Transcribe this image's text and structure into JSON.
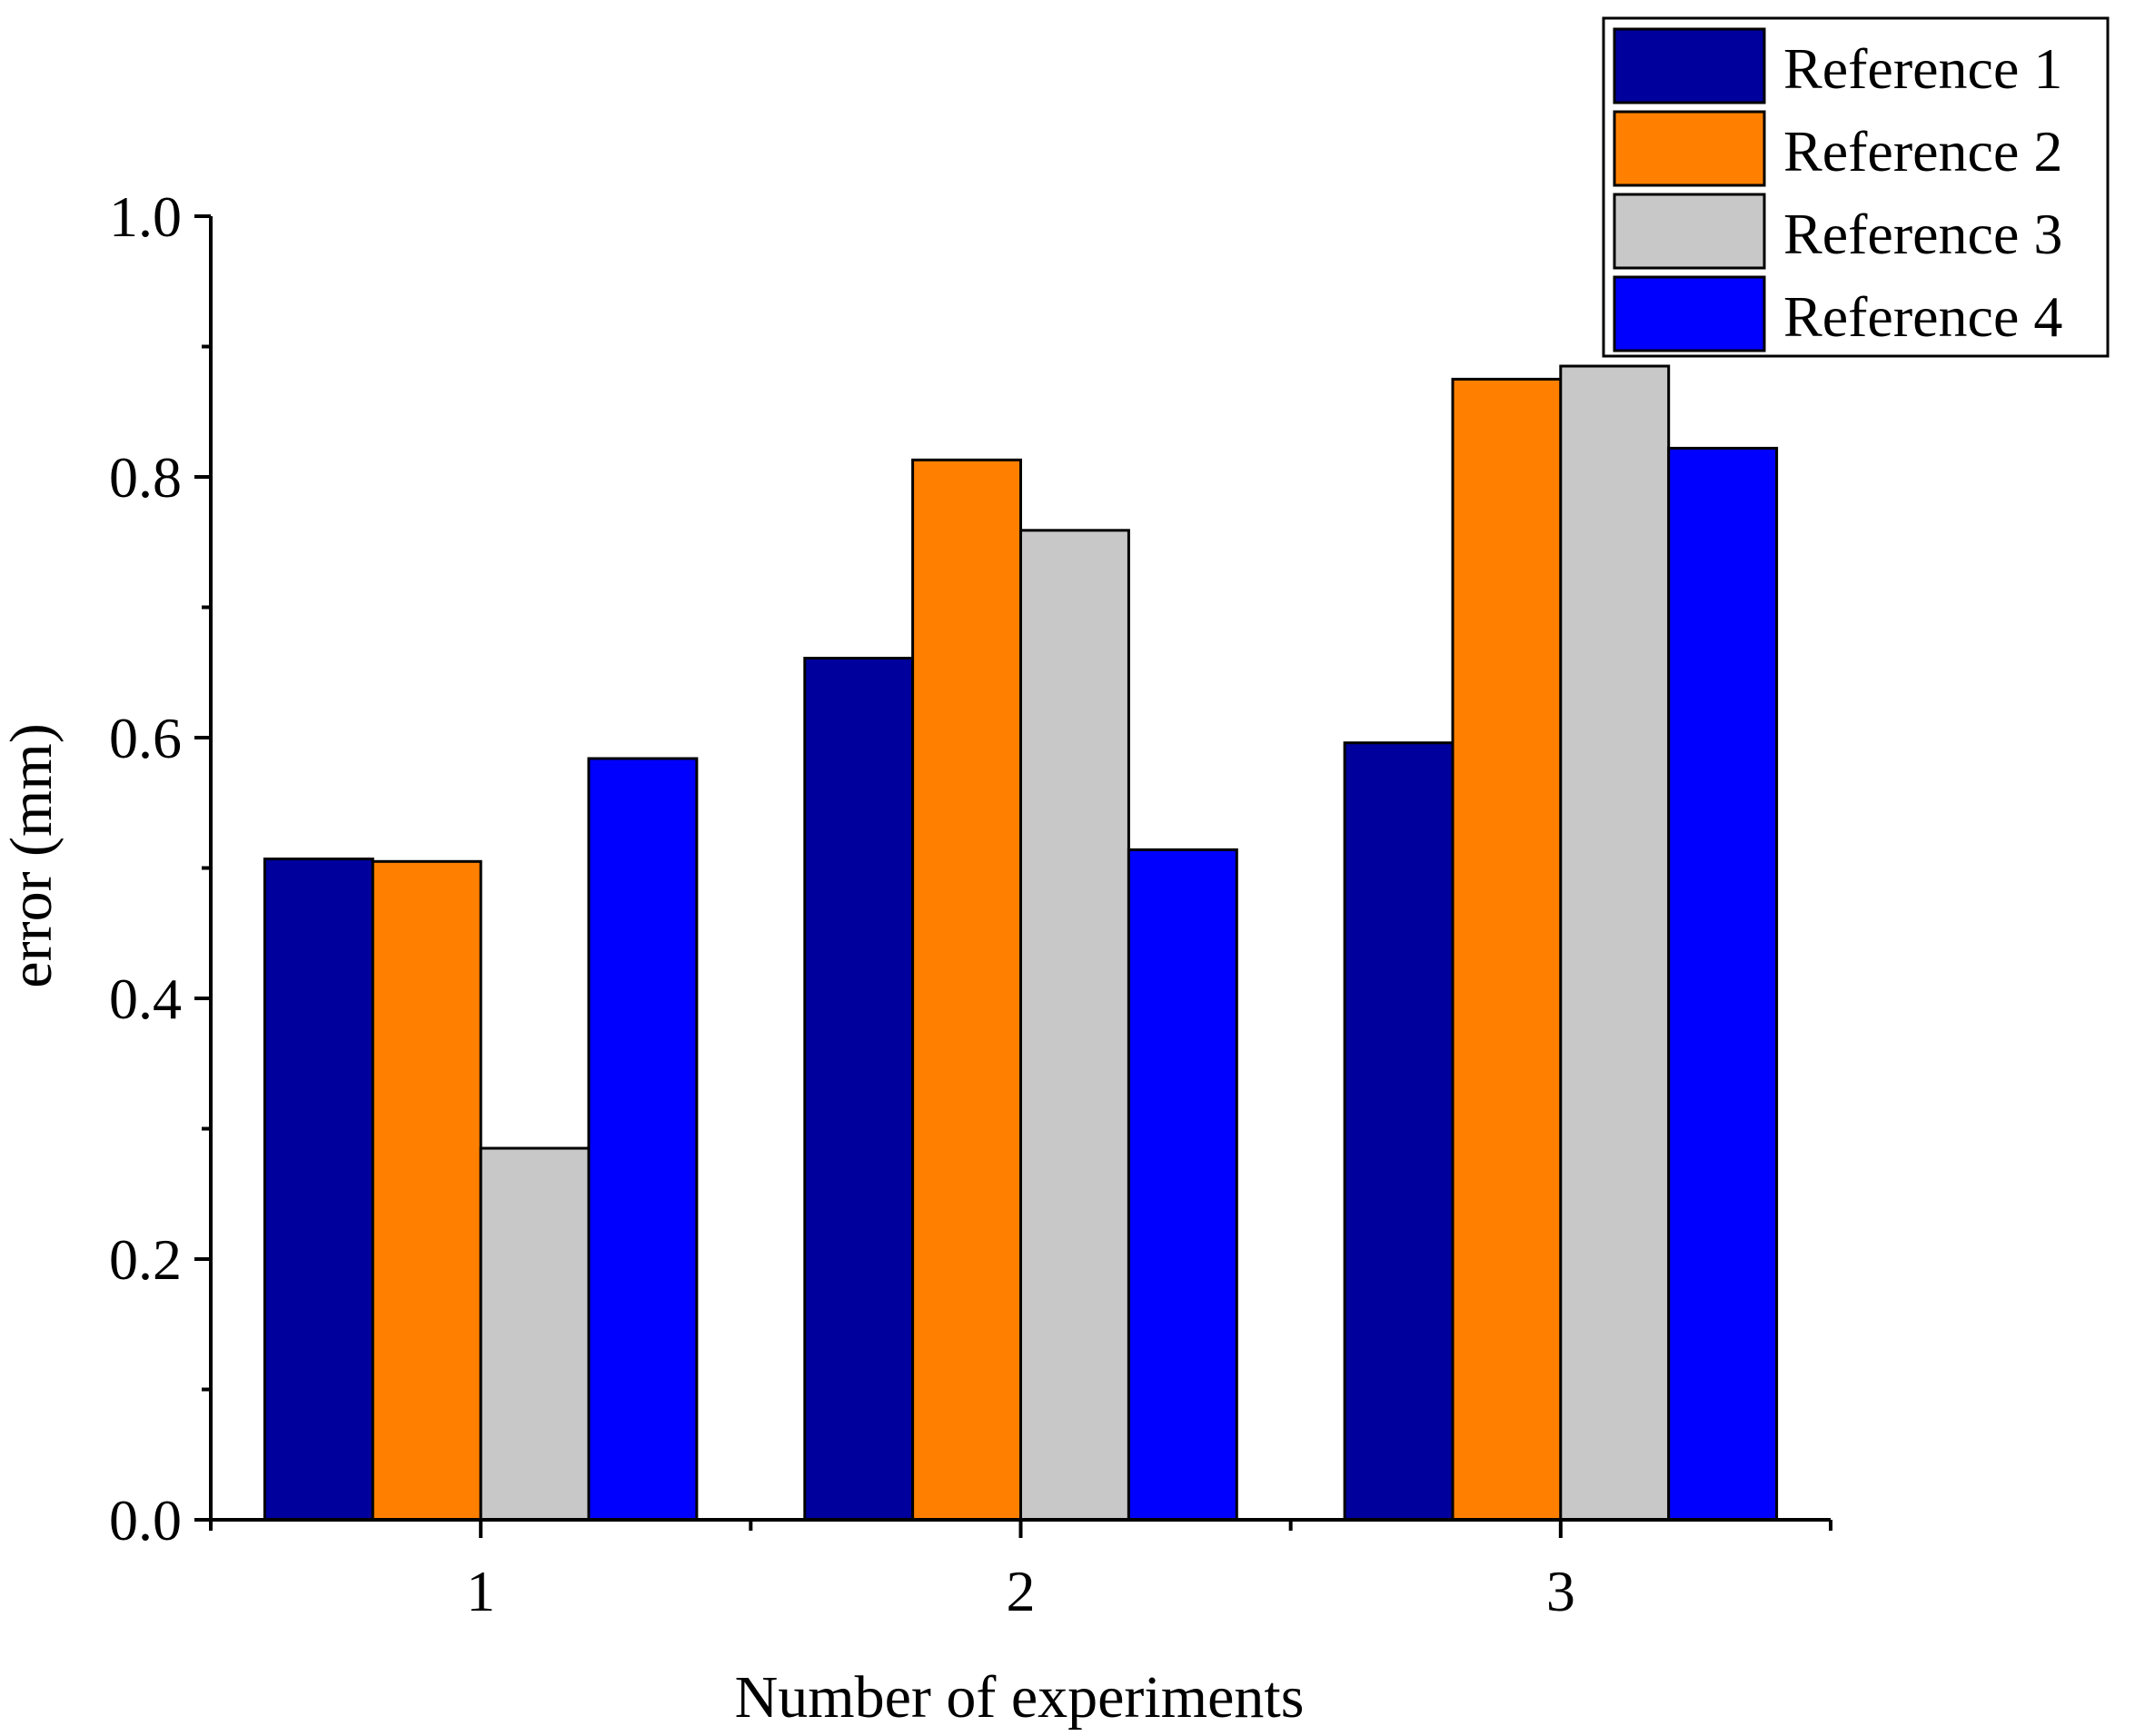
{
  "chart_data": {
    "type": "bar",
    "title": "",
    "xlabel": "Number of experiments",
    "ylabel": "error (mm)",
    "categories": [
      "1",
      "2",
      "3"
    ],
    "ylim": [
      0.0,
      1.0
    ],
    "yticks": [
      "0.0",
      "0.2",
      "0.4",
      "0.6",
      "0.8",
      "1.0"
    ],
    "grid": false,
    "legend_position": "top-right",
    "series": [
      {
        "name": "Reference 1",
        "color": "#00009C",
        "values": [
          0.507,
          0.661,
          0.596
        ]
      },
      {
        "name": "Reference 2",
        "color": "#FF8000",
        "values": [
          0.505,
          0.813,
          0.875
        ]
      },
      {
        "name": "Reference 3",
        "color": "#C8C8C8",
        "values": [
          0.285,
          0.759,
          0.885
        ]
      },
      {
        "name": "Reference 4",
        "color": "#0000FF",
        "values": [
          0.584,
          0.514,
          0.822
        ]
      }
    ]
  }
}
